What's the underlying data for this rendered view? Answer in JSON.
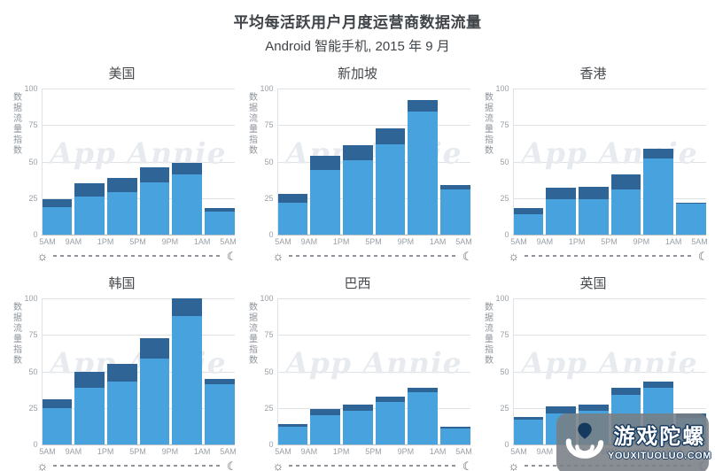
{
  "header": {
    "title": "平均每活跃用户月度运营商数据流量",
    "subtitle": "Android 智能手机, 2015 年 9 月"
  },
  "watermark": "App Annie",
  "colors": {
    "light_blue": "#47A2DE",
    "dark_blue": "#2F6497",
    "watermark_gray": "#E7EBEF",
    "logo_navy": "#16395F"
  },
  "axis": {
    "y_label": "数据流量指数",
    "y_ticks": [
      100,
      75,
      50,
      25,
      0
    ],
    "x_tick_labels": [
      "5AM",
      "9AM",
      "1PM",
      "5PM",
      "9PM",
      "1AM",
      "5AM"
    ],
    "sun_icon": "☼",
    "moon_icon": "☾"
  },
  "chart_data": [
    {
      "type": "bar",
      "stacked": true,
      "title": "美国",
      "categories": [
        "5AM-9AM",
        "9AM-1PM",
        "1PM-5PM",
        "5PM-9PM",
        "9PM-1AM",
        "1AM-5AM"
      ],
      "series": [
        {
          "name": "light-blue",
          "color": "#47A2DE",
          "values": [
            19,
            26,
            29,
            36,
            41,
            16
          ]
        },
        {
          "name": "dark-blue",
          "color": "#2F6497",
          "values": [
            5,
            9,
            10,
            10,
            8,
            2
          ]
        }
      ],
      "totals": [
        24,
        35,
        39,
        46,
        49,
        18
      ],
      "ylabel": "数据流量指数",
      "xlabel": "",
      "ylim": [
        0,
        100
      ]
    },
    {
      "type": "bar",
      "stacked": true,
      "title": "新加坡",
      "categories": [
        "5AM-9AM",
        "9AM-1PM",
        "1PM-5PM",
        "5PM-9PM",
        "9PM-1AM",
        "1AM-5AM"
      ],
      "series": [
        {
          "name": "light-blue",
          "color": "#47A2DE",
          "values": [
            22,
            44,
            51,
            62,
            84,
            31
          ]
        },
        {
          "name": "dark-blue",
          "color": "#2F6497",
          "values": [
            6,
            10,
            10,
            11,
            8,
            3
          ]
        }
      ],
      "totals": [
        28,
        54,
        61,
        73,
        92,
        34
      ],
      "ylabel": "数据流量指数",
      "xlabel": "",
      "ylim": [
        0,
        100
      ]
    },
    {
      "type": "bar",
      "stacked": true,
      "title": "香港",
      "categories": [
        "5AM-9AM",
        "9AM-1PM",
        "1PM-5PM",
        "5PM-9PM",
        "9PM-1AM",
        "1AM-5AM"
      ],
      "series": [
        {
          "name": "light-blue",
          "color": "#47A2DE",
          "values": [
            14,
            24,
            24,
            31,
            52,
            21
          ]
        },
        {
          "name": "dark-blue",
          "color": "#2F6497",
          "values": [
            4,
            8,
            9,
            10,
            7,
            1
          ]
        }
      ],
      "totals": [
        18,
        32,
        33,
        41,
        59,
        22
      ],
      "ylabel": "数据流量指数",
      "xlabel": "",
      "ylim": [
        0,
        100
      ]
    },
    {
      "type": "bar",
      "stacked": true,
      "title": "韩国",
      "categories": [
        "5AM-9AM",
        "9AM-1PM",
        "1PM-5PM",
        "5PM-9PM",
        "9PM-1AM",
        "1AM-5AM"
      ],
      "series": [
        {
          "name": "light-blue",
          "color": "#47A2DE",
          "values": [
            25,
            39,
            43,
            59,
            88,
            41
          ]
        },
        {
          "name": "dark-blue",
          "color": "#2F6497",
          "values": [
            6,
            11,
            12,
            14,
            12,
            4
          ]
        }
      ],
      "totals": [
        31,
        50,
        55,
        73,
        100,
        45
      ],
      "ylabel": "数据流量指数",
      "xlabel": "",
      "ylim": [
        0,
        100
      ]
    },
    {
      "type": "bar",
      "stacked": true,
      "title": "巴西",
      "categories": [
        "5AM-9AM",
        "9AM-1PM",
        "1PM-5PM",
        "5PM-9PM",
        "9PM-1AM",
        "1AM-5AM"
      ],
      "series": [
        {
          "name": "light-blue",
          "color": "#47A2DE",
          "values": [
            12,
            20,
            23,
            29,
            36,
            11
          ]
        },
        {
          "name": "dark-blue",
          "color": "#2F6497",
          "values": [
            2,
            4,
            4,
            4,
            3,
            1
          ]
        }
      ],
      "totals": [
        14,
        24,
        27,
        33,
        39,
        12
      ],
      "ylabel": "数据流量指数",
      "xlabel": "",
      "ylim": [
        0,
        100
      ]
    },
    {
      "type": "bar",
      "stacked": true,
      "title": "英国",
      "categories": [
        "5AM-9AM",
        "9AM-1PM",
        "1PM-5PM",
        "5PM-9PM",
        "9PM-1AM",
        "1AM-5AM"
      ],
      "series": [
        {
          "name": "light-blue",
          "color": "#47A2DE",
          "values": [
            17,
            21,
            23,
            34,
            39,
            18
          ]
        },
        {
          "name": "dark-blue",
          "color": "#2F6497",
          "values": [
            2,
            5,
            4,
            5,
            4,
            3
          ]
        }
      ],
      "totals": [
        19,
        26,
        27,
        39,
        43,
        21
      ],
      "ylabel": "数据流量指数",
      "xlabel": "",
      "ylim": [
        0,
        100
      ]
    }
  ],
  "logo": {
    "title": "游戏陀螺",
    "domain": "YOUXITUOLUO.COM"
  }
}
